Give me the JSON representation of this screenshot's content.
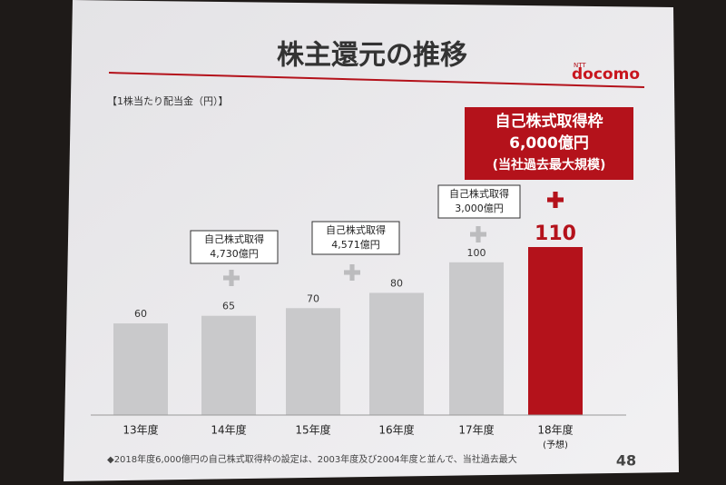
{
  "chart_data": {
    "type": "bar",
    "title": "株主還元の推移",
    "logo": {
      "brand": "docomo",
      "prefix": "NTT"
    },
    "unit_label": "【1株当たり配当金（円）】",
    "categories": [
      "13年度",
      "14年度",
      "15年度",
      "16年度",
      "17年度",
      "18年度"
    ],
    "category_sublabels": [
      null,
      null,
      null,
      null,
      null,
      "(予想)"
    ],
    "values": [
      60,
      65,
      70,
      80,
      100,
      110
    ],
    "colors": [
      "#c9c9cb",
      "#c9c9cb",
      "#c9c9cb",
      "#c9c9cb",
      "#c9c9cb",
      "#b4121b"
    ],
    "annotations": [
      {
        "lines": [
          "自己株式取得",
          "4,730億円"
        ]
      },
      {
        "lines": [
          "自己株式取得",
          "4,571億円"
        ]
      },
      {
        "lines": [
          "自己株式取得",
          "3,000億円"
        ]
      }
    ],
    "highlight": {
      "lines": [
        "自己株式取得枠",
        "6,000億円",
        "(当社過去最大規模)"
      ]
    },
    "footnote": "◆2018年度6,000億円の自己株式取得枠の設定は、2003年度及び2004年度と並んで、当社過去最大",
    "page_number": "48"
  }
}
